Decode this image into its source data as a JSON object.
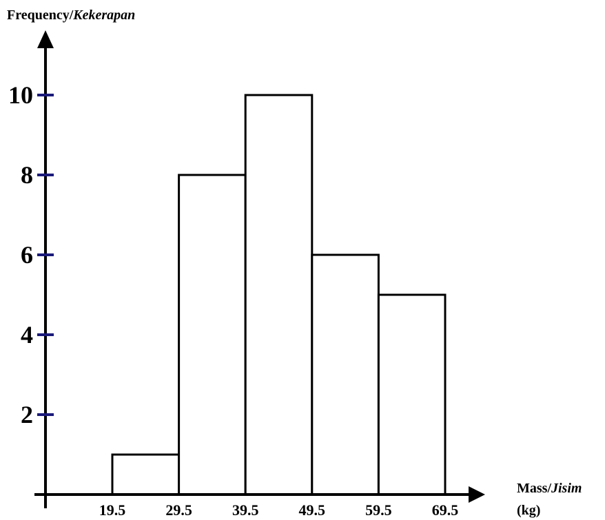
{
  "chart_data": {
    "type": "bar",
    "subtype": "histogram",
    "ylabel": "Frequency/",
    "ylabel_italic": "Kekerapan",
    "xlabel": "Mass/",
    "xlabel_italic": "Jisim",
    "xlabel_unit": "(kg)",
    "bin_edges": [
      19.5,
      29.5,
      39.5,
      49.5,
      59.5,
      69.5
    ],
    "x_tick_labels": [
      "19.5",
      "29.5",
      "39.5",
      "49.5",
      "59.5",
      "69.5"
    ],
    "values": [
      1,
      8,
      10,
      6,
      5
    ],
    "y_ticks": [
      2,
      4,
      6,
      8,
      10
    ],
    "y_tick_labels": [
      "2",
      "4",
      "6",
      "8",
      "10"
    ],
    "xlim": [
      9.5,
      72.5
    ],
    "ylim": [
      0,
      11
    ],
    "tick_color": "#1a1a7a",
    "bar_fill": "#ffffff",
    "bar_stroke": "#000000",
    "grid": false
  }
}
